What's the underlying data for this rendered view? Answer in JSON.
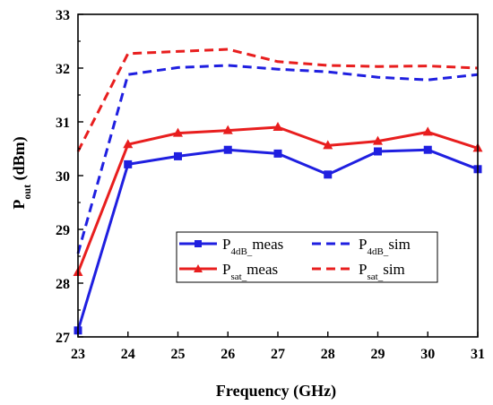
{
  "chart_data": {
    "type": "line",
    "xlabel": "Frequency (GHz)",
    "ylabel_main": "P",
    "ylabel_sub": "out",
    "ylabel_rest": " (dBm)",
    "xlim": [
      23,
      31
    ],
    "ylim": [
      27,
      33
    ],
    "xticks": [
      "23",
      "24",
      "25",
      "26",
      "27",
      "28",
      "29",
      "30",
      "31"
    ],
    "yticks": [
      "27",
      "28",
      "29",
      "30",
      "31",
      "32",
      "33"
    ],
    "x": [
      23,
      24,
      25,
      26,
      27,
      28,
      29,
      30,
      31
    ],
    "series": [
      {
        "key": "p4db-meas",
        "name_main": "P",
        "name_sub": "4dB_",
        "name_rest": "meas",
        "color": "#1f1fe0",
        "dash": false,
        "marker": "square",
        "values": [
          27.12,
          30.21,
          30.36,
          30.48,
          30.41,
          30.02,
          30.45,
          30.48,
          30.12
        ]
      },
      {
        "key": "p4db-sim",
        "name_main": "P",
        "name_sub": "4dB_",
        "name_rest": "sim",
        "color": "#1f1fe0",
        "dash": true,
        "marker": "none",
        "values": [
          28.55,
          31.88,
          32.01,
          32.05,
          31.98,
          31.93,
          31.83,
          31.78,
          31.88
        ]
      },
      {
        "key": "psat-meas",
        "name_main": "P",
        "name_sub": "sat_",
        "name_rest": "meas",
        "color": "#e81e1e",
        "dash": false,
        "marker": "triangle",
        "values": [
          28.2,
          30.58,
          30.79,
          30.84,
          30.9,
          30.56,
          30.64,
          30.81,
          30.51
        ]
      },
      {
        "key": "psat-sim",
        "name_main": "P",
        "name_sub": "sat_",
        "name_rest": "sim",
        "color": "#e81e1e",
        "dash": true,
        "marker": "none",
        "values": [
          30.45,
          32.27,
          32.31,
          32.35,
          32.12,
          32.05,
          32.03,
          32.04,
          32.0
        ]
      }
    ],
    "grid": false,
    "legend_position": "lower-center, 2 columns"
  }
}
